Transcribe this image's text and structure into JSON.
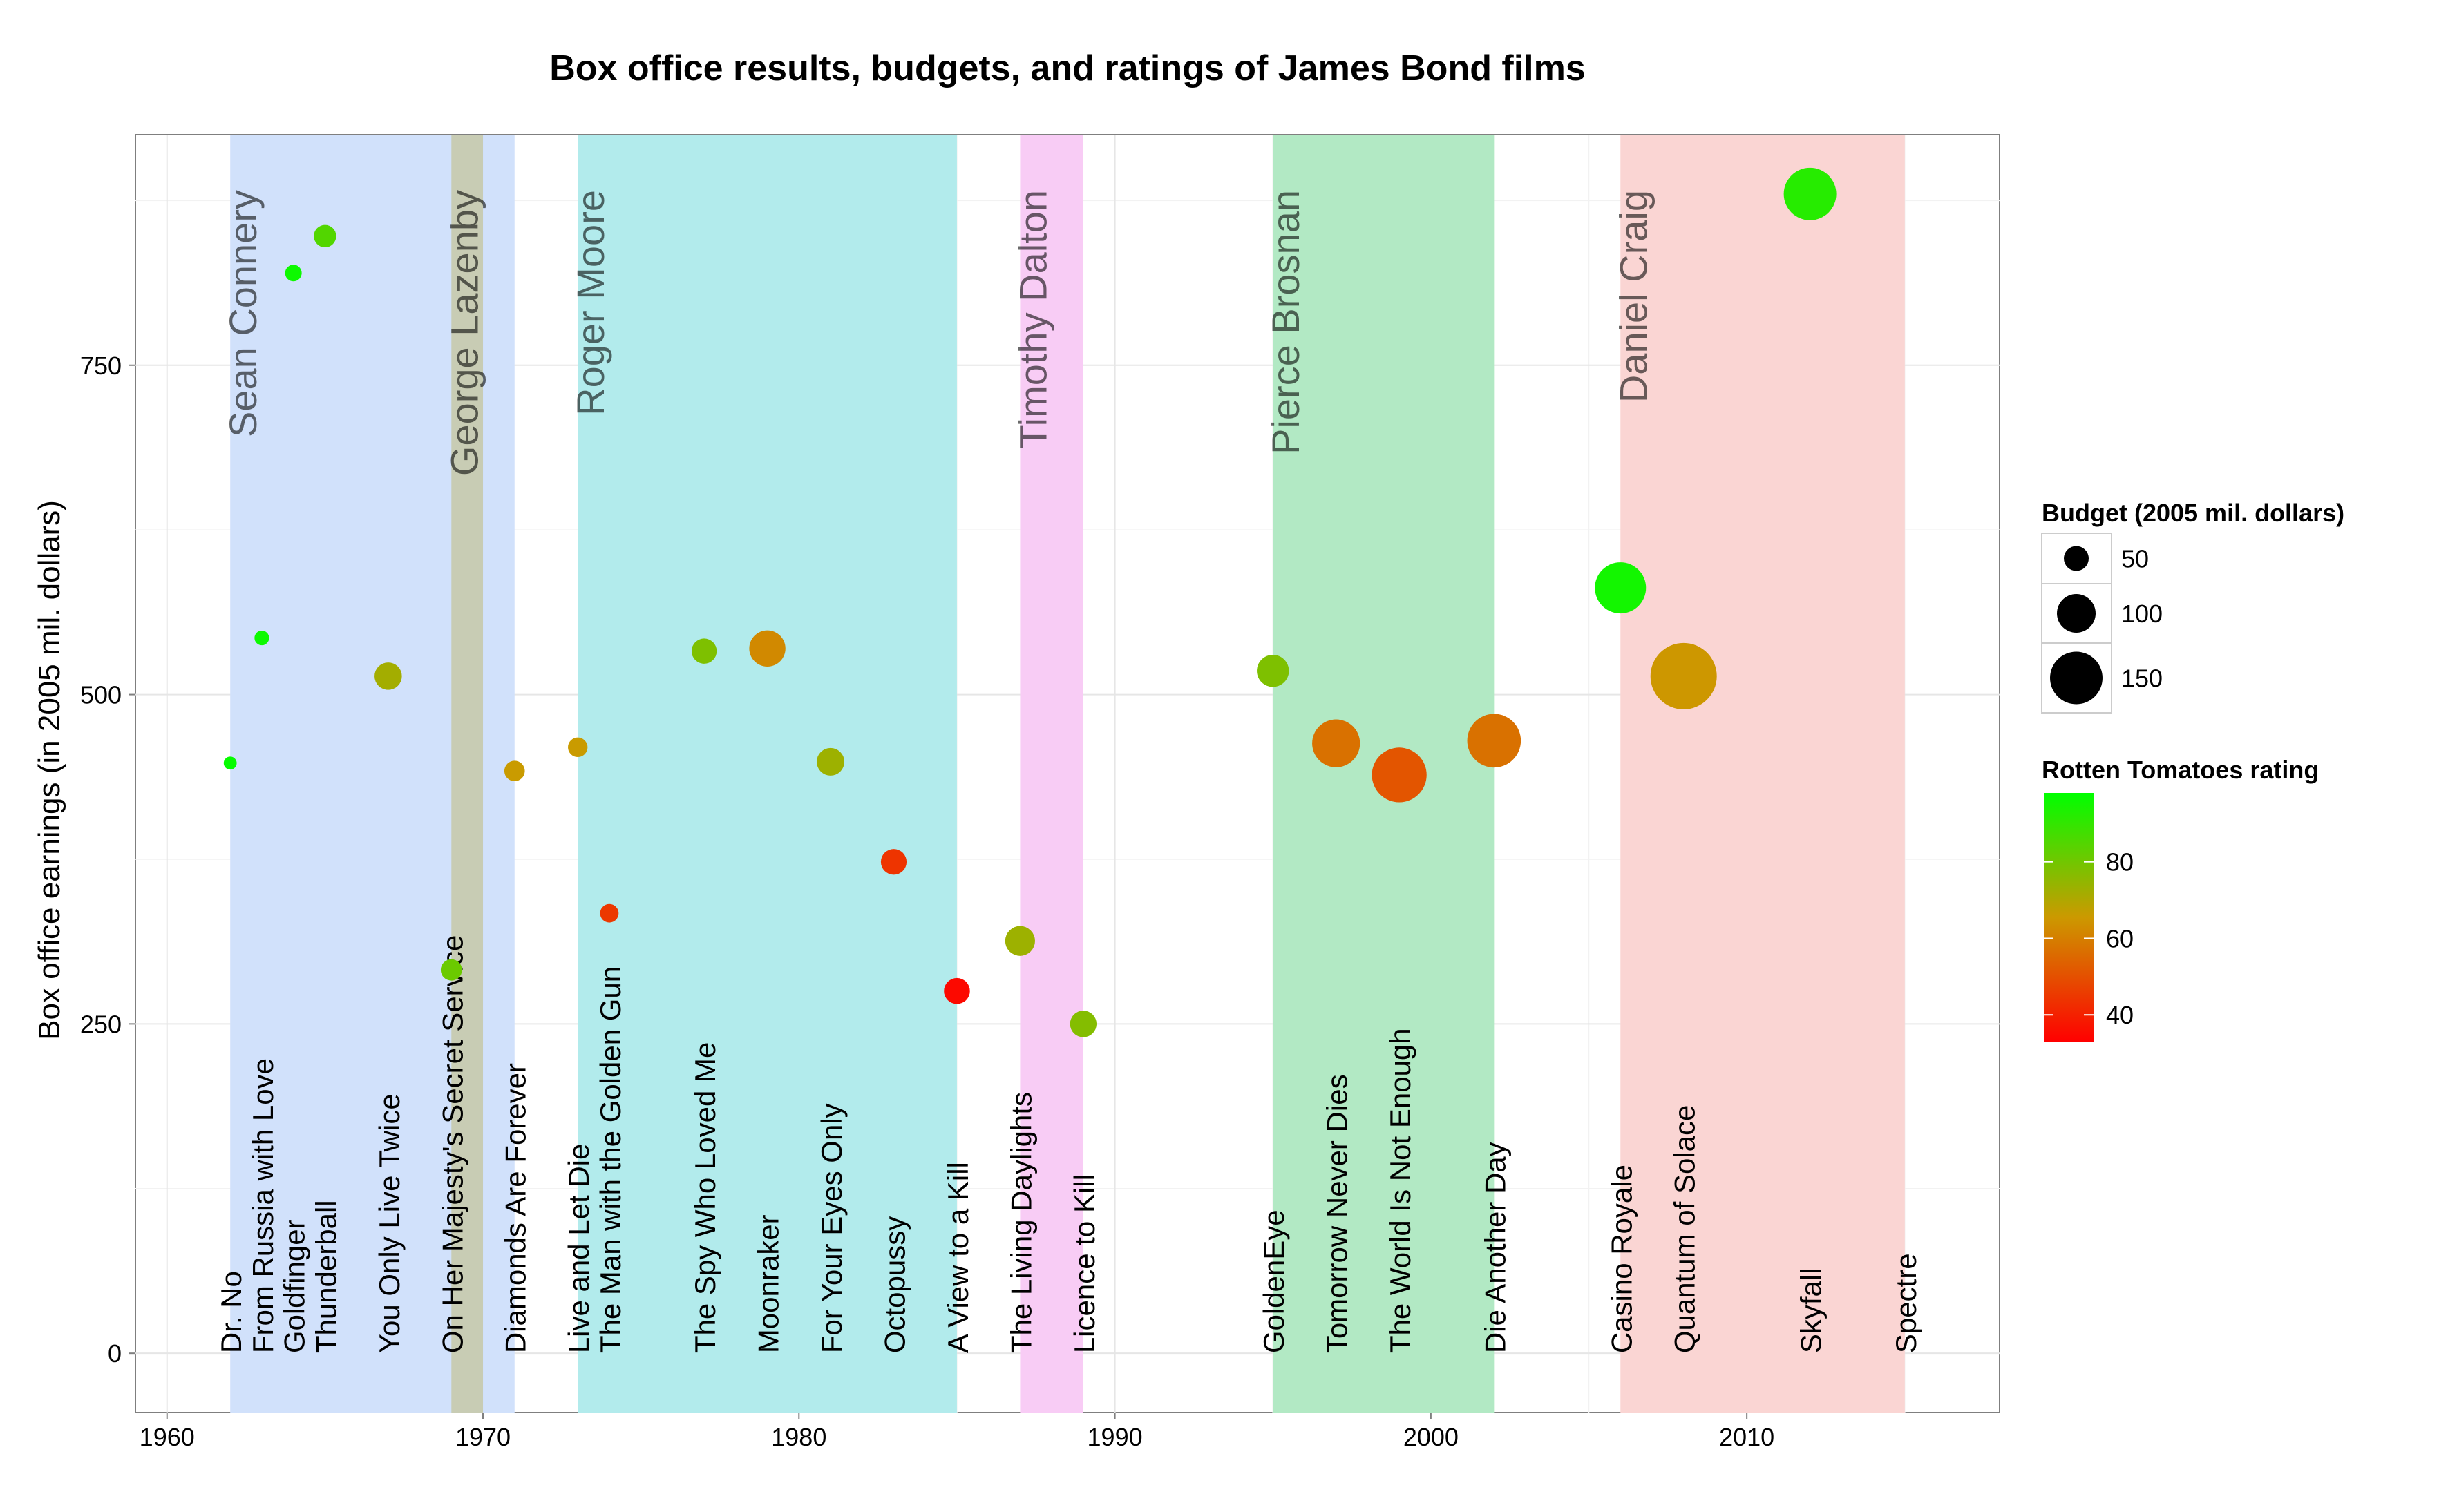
{
  "chart_data": {
    "type": "scatter",
    "title": "Box office results, budgets, and ratings of James Bond films",
    "xlabel": "",
    "ylabel": "Box office earnings (in 2005 mil. dollars)",
    "xlim": [
      1959,
      2018
    ],
    "ylim": [
      -45,
      925
    ],
    "x_ticks": [
      "1960",
      "1970",
      "1980",
      "1990",
      "2000",
      "2010"
    ],
    "y_ticks": [
      "0",
      "250",
      "500",
      "750"
    ],
    "grid": true,
    "legend_position": "right",
    "actors": [
      {
        "name": "Sean Connery",
        "start": 1962,
        "end": 1971,
        "color": "#d1e1fb"
      },
      {
        "name": "George Lazenby",
        "start": 1969,
        "end": 1970,
        "color": "#c8ccb4"
      },
      {
        "name": "Roger Moore",
        "start": 1973,
        "end": 1985,
        "color": "#b2ebec"
      },
      {
        "name": "Timothy Dalton",
        "start": 1987,
        "end": 1989,
        "color": "#f8ccf5"
      },
      {
        "name": "Pierce Brosnan",
        "start": 1995,
        "end": 2002,
        "color": "#b2e9c4"
      },
      {
        "name": "Daniel Craig",
        "start": 2006,
        "end": 2015,
        "color": "#fad5d3"
      }
    ],
    "films": [
      {
        "title": "Dr. No",
        "year": 1962,
        "box_office": 448,
        "budget": 7,
        "rating": 97
      },
      {
        "title": "From Russia with Love",
        "year": 1963,
        "box_office": 543,
        "budget": 13,
        "rating": 96
      },
      {
        "title": "Goldfinger",
        "year": 1964,
        "box_office": 820,
        "budget": 20,
        "rating": 96
      },
      {
        "title": "Thunderball",
        "year": 1965,
        "box_office": 848,
        "budget": 41,
        "rating": 85
      },
      {
        "title": "You Only Live Twice",
        "year": 1967,
        "box_office": 514,
        "budget": 59,
        "rating": 72
      },
      {
        "title": "On Her Majesty's Secret Service",
        "year": 1969,
        "box_office": 291,
        "budget": 37,
        "rating": 81
      },
      {
        "title": "Diamonds Are Forever",
        "year": 1971,
        "box_office": 442,
        "budget": 34,
        "rating": 66
      },
      {
        "title": "Live and Let Die",
        "year": 1973,
        "box_office": 460,
        "budget": 31,
        "rating": 66
      },
      {
        "title": "The Man with the Golden Gun",
        "year": 1974,
        "box_office": 334,
        "budget": 27,
        "rating": 45
      },
      {
        "title": "The Spy Who Loved Me",
        "year": 1977,
        "box_office": 533,
        "budget": 51,
        "rating": 78
      },
      {
        "title": "Moonraker",
        "year": 1979,
        "box_office": 535,
        "budget": 91,
        "rating": 62
      },
      {
        "title": "For Your Eyes Only",
        "year": 1981,
        "box_office": 449,
        "budget": 60,
        "rating": 73
      },
      {
        "title": "Octopussy",
        "year": 1983,
        "box_office": 373,
        "budget": 53,
        "rating": 44
      },
      {
        "title": "A View to a Kill",
        "year": 1985,
        "box_office": 275,
        "budget": 54,
        "rating": 35
      },
      {
        "title": "The Living Daylights",
        "year": 1987,
        "box_office": 313,
        "budget": 68,
        "rating": 73
      },
      {
        "title": "Licence to Kill",
        "year": 1989,
        "box_office": 250,
        "budget": 56,
        "rating": 77
      },
      {
        "title": "GoldenEye",
        "year": 1995,
        "box_office": 518,
        "budget": 76,
        "rating": 78
      },
      {
        "title": "Tomorrow Never Dies",
        "year": 1997,
        "box_office": 463,
        "budget": 133,
        "rating": 57
      },
      {
        "title": "The World Is Not Enough",
        "year": 1999,
        "box_office": 439,
        "budget": 158,
        "rating": 51
      },
      {
        "title": "Die Another Day",
        "year": 2002,
        "box_office": 465,
        "budget": 154,
        "rating": 57
      },
      {
        "title": "Casino Royale",
        "year": 2006,
        "box_office": 581,
        "budget": 145,
        "rating": 95
      },
      {
        "title": "Quantum of Solace",
        "year": 2008,
        "box_office": 514,
        "budget": 200,
        "rating": 65
      },
      {
        "title": "Skyfall",
        "year": 2012,
        "box_office": 880,
        "budget": 150,
        "rating": 92
      },
      {
        "title": "Spectre",
        "year": 2015,
        "box_office": null,
        "budget": null,
        "rating": null
      }
    ],
    "size_legend": {
      "title": "Budget (2005 mil. dollars)",
      "values": [
        50,
        100,
        150
      ],
      "labels": [
        "50",
        "100",
        "150"
      ]
    },
    "color_legend": {
      "title": "Rotten Tomatoes rating",
      "ticks": [
        40,
        60,
        80
      ],
      "labels": [
        "40",
        "60",
        "80"
      ],
      "range": [
        33,
        98
      ],
      "low_color": "#ff0000",
      "mid_color": "#cc9900",
      "high_color": "#00ff00"
    }
  }
}
